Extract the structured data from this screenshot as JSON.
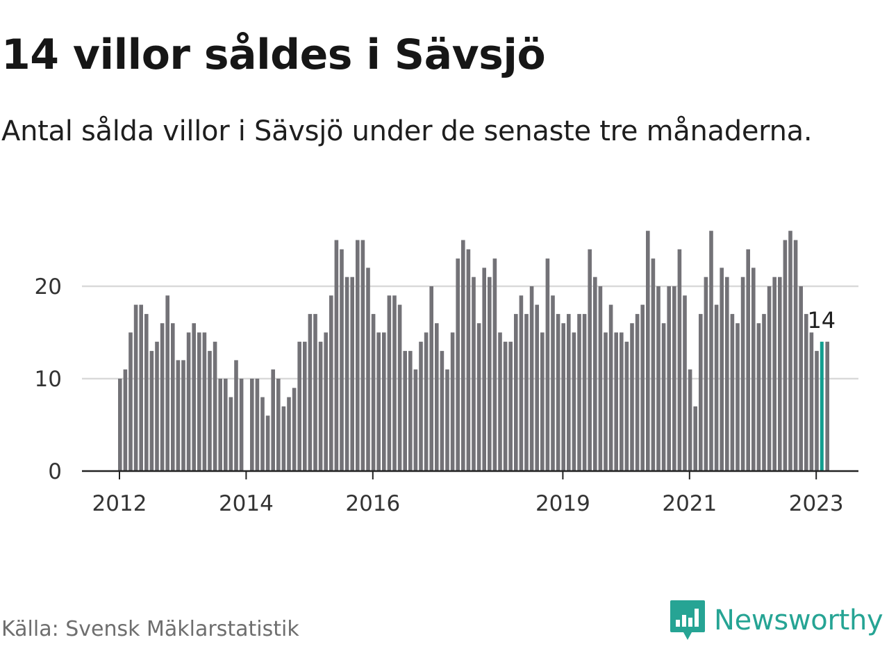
{
  "title": "14 villor såldes i Sävsjö",
  "subtitle": "Antal sålda villor i Sävsjö under de senaste tre månaderna.",
  "source": "Källa: Svensk Mäklarstatistik",
  "brand": {
    "name": "Newsworthy",
    "icon": "bar-chart-speech-bubble-icon",
    "color": "#26a494"
  },
  "colors": {
    "bar": "#737277",
    "highlight": "#129e8f",
    "grid": "#d9d9d9",
    "axis": "#222222"
  },
  "chart_data": {
    "type": "bar",
    "title": "14 villor såldes i Sävsjö",
    "xlabel": "",
    "ylabel": "",
    "ylim": [
      0,
      26
    ],
    "yticks": [
      0,
      10,
      20
    ],
    "xticks": [
      {
        "label": "2012",
        "index": 0
      },
      {
        "label": "2014",
        "index": 24
      },
      {
        "label": "2016",
        "index": 48
      },
      {
        "label": "2019",
        "index": 84
      },
      {
        "label": "2021",
        "index": 108
      },
      {
        "label": "2023",
        "index": 132
      }
    ],
    "grid": true,
    "legend": "none",
    "start_month": "2012-01",
    "values": [
      10,
      11,
      15,
      18,
      18,
      17,
      13,
      14,
      16,
      19,
      16,
      12,
      12,
      15,
      16,
      15,
      15,
      13,
      14,
      10,
      10,
      8,
      12,
      10,
      0,
      10,
      10,
      8,
      6,
      11,
      10,
      7,
      8,
      9,
      14,
      14,
      17,
      17,
      14,
      15,
      19,
      25,
      24,
      21,
      21,
      25,
      25,
      22,
      17,
      15,
      15,
      19,
      19,
      18,
      13,
      13,
      11,
      14,
      15,
      20,
      16,
      13,
      11,
      15,
      23,
      25,
      24,
      21,
      16,
      22,
      21,
      23,
      15,
      14,
      14,
      17,
      19,
      17,
      20,
      18,
      15,
      23,
      19,
      17,
      16,
      17,
      15,
      17,
      17,
      24,
      21,
      20,
      15,
      18,
      15,
      15,
      14,
      16,
      17,
      18,
      26,
      23,
      20,
      16,
      20,
      20,
      24,
      19,
      11,
      7,
      17,
      21,
      26,
      18,
      22,
      21,
      17,
      16,
      21,
      24,
      22,
      16,
      17,
      20,
      21,
      21,
      25,
      26,
      25,
      20,
      17,
      15,
      13,
      14
    ],
    "highlight_index": 133,
    "highlight_label": "14"
  }
}
